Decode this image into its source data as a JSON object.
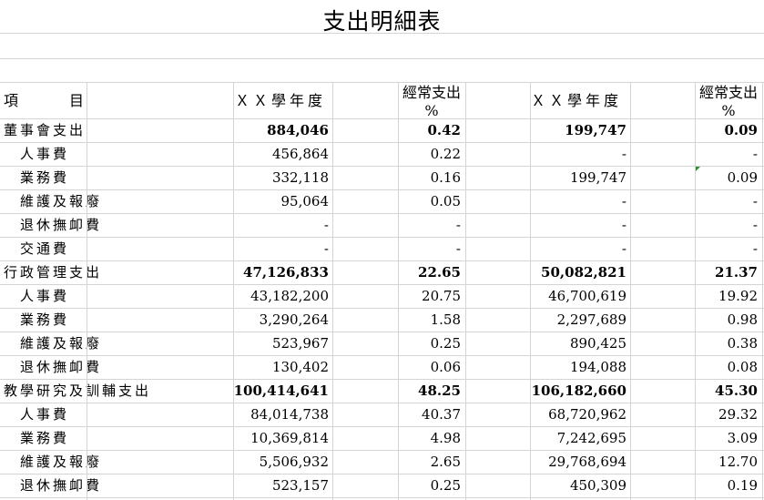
{
  "title": "支出明細表",
  "header": {
    "item": "項",
    "item2": "目",
    "year_a": "ＸＸ學年度",
    "pct_a_line1": "經常支出",
    "pct_a_line2": "%",
    "year_b": "ＸＸ學年度",
    "pct_b_line1": "經常支出",
    "pct_b_line2": "%"
  },
  "rows": [
    {
      "label": "董事會支出",
      "a": "884,046",
      "pa": "0.42",
      "b": "199,747",
      "pb": "0.09",
      "type": "group"
    },
    {
      "label": "人事費",
      "a": "456,864",
      "pa": "0.22",
      "b": "-",
      "pb": "-",
      "type": "sub"
    },
    {
      "label": "業務費",
      "a": "332,118",
      "pa": "0.16",
      "b": "199,747",
      "pb": "0.09",
      "type": "sub"
    },
    {
      "label": "維護及報廢",
      "a": "95,064",
      "pa": "0.05",
      "b": "-",
      "pb": "-",
      "type": "sub"
    },
    {
      "label": "退休撫卹費",
      "a": "-",
      "pa": "-",
      "b": "-",
      "pb": "-",
      "type": "sub"
    },
    {
      "label": "交通費",
      "a": "-",
      "pa": "-",
      "b": "-",
      "pb": "-",
      "type": "sub"
    },
    {
      "label": "行政管理支出",
      "a": "47,126,833",
      "pa": "22.65",
      "b": "50,082,821",
      "pb": "21.37",
      "type": "group"
    },
    {
      "label": "人事費",
      "a": "43,182,200",
      "pa": "20.75",
      "b": "46,700,619",
      "pb": "19.92",
      "type": "sub"
    },
    {
      "label": "業務費",
      "a": "3,290,264",
      "pa": "1.58",
      "b": "2,297,689",
      "pb": "0.98",
      "type": "sub"
    },
    {
      "label": "維護及報廢",
      "a": "523,967",
      "pa": "0.25",
      "b": "890,425",
      "pb": "0.38",
      "type": "sub"
    },
    {
      "label": "退休撫卹費",
      "a": "130,402",
      "pa": "0.06",
      "b": "194,088",
      "pb": "0.08",
      "type": "sub"
    },
    {
      "label": "教學研究及訓輔支出",
      "a": "100,414,641",
      "pa": "48.25",
      "b": "106,182,660",
      "pb": "45.30",
      "type": "group"
    },
    {
      "label": "人事費",
      "a": "84,014,738",
      "pa": "40.37",
      "b": "68,720,962",
      "pb": "29.32",
      "type": "sub"
    },
    {
      "label": "業務費",
      "a": "10,369,814",
      "pa": "4.98",
      "b": "7,242,695",
      "pb": "3.09",
      "type": "sub"
    },
    {
      "label": "維護及報廢",
      "a": "5,506,932",
      "pa": "2.65",
      "b": "29,768,694",
      "pb": "12.70",
      "type": "sub"
    },
    {
      "label": "退休撫卹費",
      "a": "523,157",
      "pa": "0.25",
      "b": "450,309",
      "pb": "0.19",
      "type": "sub"
    }
  ]
}
